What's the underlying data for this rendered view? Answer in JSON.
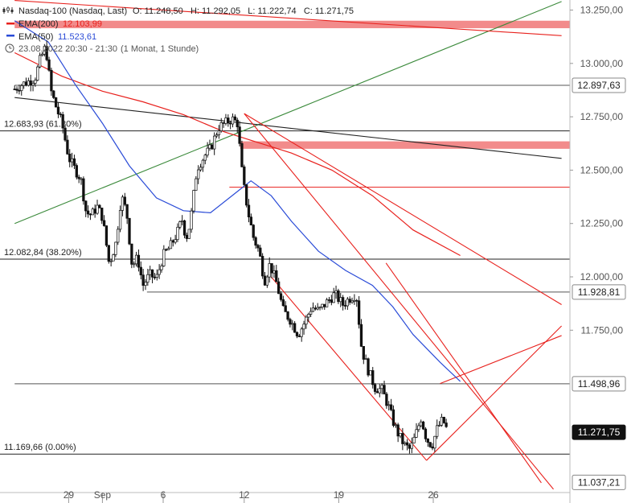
{
  "header": {
    "instrument": "Nasdaq-100 (Nasdaq, Last)",
    "ohlc": "O: 11.248,50   H: 11.292,05   L: 11.222,74   C: 11.271,75",
    "timestamp": "23.08.2022 20:30 - 21:30",
    "timeframe": "(1 Monat, 1 Stunde)"
  },
  "legend": [
    {
      "name": "EMA(200)",
      "value": "12.103,99",
      "color": "#e8211d"
    },
    {
      "name": "EMA(50)",
      "value": "11.523,61",
      "color": "#2a4bd7"
    }
  ],
  "colors": {
    "ema200": "#e8211d",
    "ema50": "#2a4bd7",
    "resistance_band": "#f28b8b",
    "trend_green": "#3b8a3b",
    "trend_red": "#e8211d",
    "trend_black": "#222222"
  },
  "chart_data": {
    "type": "candlestick",
    "y_axis_labels": [
      "13.250,00",
      "13.000,00",
      "12.750,00",
      "12.500,00",
      "12.250,00",
      "12.000,00",
      "11.750,00"
    ],
    "y_ticks": [
      13250,
      13000,
      12750,
      12500,
      12250,
      12000,
      11750
    ],
    "x_labels": [
      {
        "label": "29",
        "x": 0.5
      },
      {
        "label": "Sep",
        "x": 3
      },
      {
        "label": "6",
        "x": 7.5
      },
      {
        "label": "12",
        "x": 13.5
      },
      {
        "label": "19",
        "x": 20.5
      },
      {
        "label": "26",
        "x": 27.5
      }
    ],
    "price_boxes": [
      {
        "label": "12.897,63",
        "value": 12897.63,
        "style": "white"
      },
      {
        "label": "11.928,81",
        "value": 11928.81,
        "style": "white"
      },
      {
        "label": "11.498,96",
        "value": 11498.96,
        "style": "white"
      },
      {
        "label": "11.271,75",
        "value": 11271.75,
        "style": "dark"
      },
      {
        "label": "11.037,21",
        "value": 11037.21,
        "style": "white"
      }
    ],
    "fib_levels": [
      {
        "label": "12.683,93 (61.80%)",
        "value": 12683.93
      },
      {
        "label": "12.082,84 (38.20%)",
        "value": 12082.84
      },
      {
        "label": "11.169,66 (0.00%)",
        "value": 11169.66
      }
    ],
    "horizontal_lines": [
      {
        "value": 12897.63,
        "color": "#555555",
        "x_from": -3.5
      },
      {
        "value": 11928.81,
        "color": "#555555",
        "x_from": 6.3
      },
      {
        "value": 11498.96,
        "color": "#555555",
        "x_from": -3.5
      },
      {
        "value": 12420,
        "color": "#e8211d",
        "x_from": 12.4
      }
    ],
    "bands": [
      {
        "low": 13165,
        "high": 13200,
        "x_from": -3.5
      },
      {
        "low": 12600,
        "high": 12635,
        "x_from": 13.2
      }
    ],
    "ema200": [
      [
        -3.5,
        13050
      ],
      [
        0,
        12940
      ],
      [
        3,
        12870
      ],
      [
        6,
        12820
      ],
      [
        9,
        12760
      ],
      [
        12,
        12680
      ],
      [
        14,
        12640
      ],
      [
        17,
        12580
      ],
      [
        20,
        12500
      ],
      [
        23,
        12380
      ],
      [
        26,
        12220
      ],
      [
        29.5,
        12100
      ]
    ],
    "ema50": [
      [
        -3.5,
        13200
      ],
      [
        -1,
        13100
      ],
      [
        1,
        12900
      ],
      [
        3,
        12720
      ],
      [
        5,
        12520
      ],
      [
        7,
        12370
      ],
      [
        9,
        12310
      ],
      [
        11,
        12300
      ],
      [
        13,
        12400
      ],
      [
        14,
        12450
      ],
      [
        15.5,
        12380
      ],
      [
        17,
        12260
      ],
      [
        19,
        12120
      ],
      [
        21,
        12030
      ],
      [
        23,
        11960
      ],
      [
        24.5,
        11860
      ],
      [
        26,
        11730
      ],
      [
        28,
        11600
      ],
      [
        29.5,
        11510
      ]
    ],
    "trendlines": [
      {
        "color": "#3b8a3b",
        "p1": [
          -3.5,
          12250
        ],
        "p2": [
          37,
          13290
        ]
      },
      {
        "color": "#222222",
        "p1": [
          -3.5,
          12840
        ],
        "p2": [
          37,
          12555
        ]
      },
      {
        "color": "#e8211d",
        "p1": [
          -3.5,
          13295
        ],
        "p2": [
          37,
          13130
        ]
      },
      {
        "color": "#e8211d",
        "p1": [
          13.5,
          12765
        ],
        "p2": [
          37,
          11870
        ]
      },
      {
        "color": "#e8211d",
        "p1": [
          13.5,
          12765
        ],
        "p2": [
          36.4,
          11005
        ]
      },
      {
        "color": "#e8211d",
        "p1": [
          15.5,
          12000
        ],
        "p2": [
          27,
          11140
        ]
      },
      {
        "color": "#e8211d",
        "p1": [
          24,
          12065
        ],
        "p2": [
          35.5,
          11035
        ]
      },
      {
        "color": "#e8211d",
        "p1": [
          27,
          11140
        ],
        "p2": [
          37,
          11770
        ]
      },
      {
        "color": "#e8211d",
        "p1": [
          28,
          11500
        ],
        "p2": [
          37,
          11725
        ]
      }
    ],
    "candle_anchors": [
      [
        -3.5,
        12880
      ],
      [
        -3,
        12900
      ],
      [
        -2,
        12930
      ],
      [
        -1.6,
        13020
      ],
      [
        -1.2,
        13080
      ],
      [
        -0.8,
        12870
      ],
      [
        -0.4,
        12790
      ],
      [
        0,
        12720
      ],
      [
        0.5,
        12560
      ],
      [
        1,
        12500
      ],
      [
        1.4,
        12460
      ],
      [
        1.8,
        12300
      ],
      [
        2.2,
        12290
      ],
      [
        2.6,
        12330
      ],
      [
        3,
        12280
      ],
      [
        3.5,
        12060
      ],
      [
        4,
        12160
      ],
      [
        4.4,
        12380
      ],
      [
        4.8,
        12300
      ],
      [
        5.2,
        12050
      ],
      [
        5.6,
        12090
      ],
      [
        6,
        11960
      ],
      [
        6.5,
        12010
      ],
      [
        7,
        11990
      ],
      [
        7.5,
        12100
      ],
      [
        8,
        12140
      ],
      [
        8.5,
        12200
      ],
      [
        8.9,
        12270
      ],
      [
        9.2,
        12180
      ],
      [
        9.5,
        12250
      ],
      [
        10,
        12510
      ],
      [
        10.6,
        12570
      ],
      [
        11,
        12600
      ],
      [
        11.6,
        12700
      ],
      [
        12.1,
        12720
      ],
      [
        12.6,
        12740
      ],
      [
        13,
        12720
      ],
      [
        13.4,
        12450
      ],
      [
        13.8,
        12300
      ],
      [
        14.2,
        12180
      ],
      [
        14.6,
        12120
      ],
      [
        15,
        11980
      ],
      [
        15.4,
        12060
      ],
      [
        15.9,
        11970
      ],
      [
        16.4,
        11840
      ],
      [
        16.9,
        11800
      ],
      [
        17.5,
        11730
      ],
      [
        18,
        11790
      ],
      [
        18.5,
        11860
      ],
      [
        19,
        11840
      ],
      [
        19.6,
        11880
      ],
      [
        20.2,
        11920
      ],
      [
        20.8,
        11870
      ],
      [
        21.3,
        11900
      ],
      [
        21.8,
        11920
      ],
      [
        22.2,
        11660
      ],
      [
        22.7,
        11560
      ],
      [
        23.2,
        11480
      ],
      [
        23.7,
        11470
      ],
      [
        24.2,
        11390
      ],
      [
        24.6,
        11310
      ],
      [
        25,
        11250
      ],
      [
        25.4,
        11210
      ],
      [
        25.8,
        11190
      ],
      [
        26.2,
        11260
      ],
      [
        26.6,
        11340
      ],
      [
        27,
        11240
      ],
      [
        27.4,
        11210
      ],
      [
        27.8,
        11290
      ],
      [
        28.2,
        11330
      ],
      [
        28.6,
        11270
      ]
    ]
  }
}
